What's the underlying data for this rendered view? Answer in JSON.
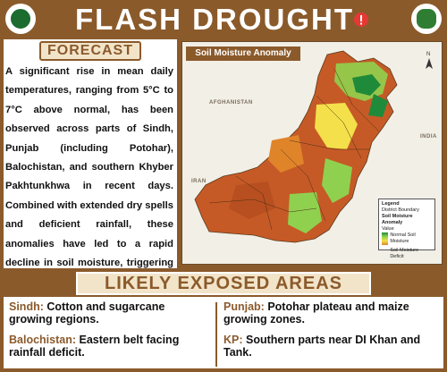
{
  "header": {
    "title": "FLASH DROUGHT",
    "alert_color": "#e53935"
  },
  "forecast": {
    "heading": "FORECAST",
    "body": "A significant rise in mean daily temperatures, ranging from 5°C to 7°C above normal, has been observed across parts of Sindh, Punjab (including Potohar), Balochistan, and southern Khyber Pakhtunkhwa in recent days. Combined with extended dry spells and deficient rainfall, these anomalies have led to a rapid decline in soil moisture, triggering flash drought conditions in vulnerable agricultural zones."
  },
  "map": {
    "title": "Soil Moisture Anomaly",
    "place_labels": [
      "AFGHANISTAN",
      "IRAN",
      "INDIA"
    ],
    "legend": {
      "heading": "Legend",
      "boundary": "District Boundary",
      "layer": "Soil Moisture Anomaly",
      "value": "Value",
      "high": "Normal Soil Moisture",
      "low": "Soil Moisture Deficit"
    },
    "colors": {
      "normal": "#1f8a3a",
      "moderate": "#8fd14f",
      "dry": "#f4e04a",
      "deficit": "#c65a26",
      "background": "#f1efe6"
    }
  },
  "exposed": {
    "heading": "LIKELY EXPOSED AREAS",
    "items": [
      {
        "region": "Sindh:",
        "text": " Cotton and sugarcane growing regions."
      },
      {
        "region": "Balochistan:",
        "text": " Eastern belt facing rainfall deficit."
      },
      {
        "region": "Punjab:",
        "text": " Potohar plateau and maize growing zones."
      },
      {
        "region": "KP:",
        "text": " Southern parts near DI Khan and Tank."
      }
    ]
  }
}
